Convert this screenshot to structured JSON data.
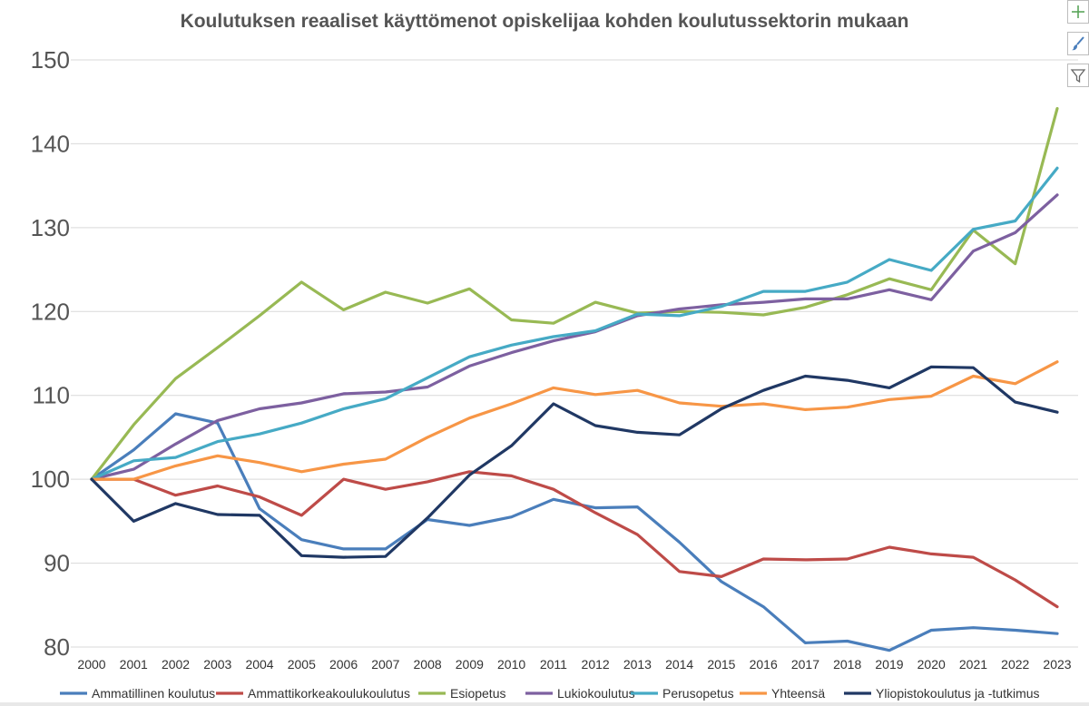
{
  "chart_data": {
    "type": "line",
    "title": "Koulutuksen reaaliset käyttömenot opiskelijaa kohden koulutussektorin mukaan",
    "xlabel": "",
    "ylabel": "",
    "ylim": [
      80,
      150
    ],
    "yticks": [
      80,
      90,
      100,
      110,
      120,
      130,
      140,
      150
    ],
    "grid": true,
    "legend_position": "bottom",
    "categories": [
      "2000",
      "2001",
      "2002",
      "2003",
      "2004",
      "2005",
      "2006",
      "2007",
      "2008",
      "2009",
      "2010",
      "2011",
      "2012",
      "2013",
      "2014",
      "2015",
      "2016",
      "2017",
      "2018",
      "2019",
      "2020",
      "2021",
      "2022",
      "2023"
    ],
    "series": [
      {
        "name": "Ammatillinen koulutus",
        "color": "#4a7ebb",
        "values": [
          100.0,
          103.5,
          107.8,
          106.7,
          96.5,
          92.8,
          91.7,
          91.7,
          95.2,
          94.5,
          95.5,
          97.6,
          96.6,
          96.7,
          92.5,
          87.8,
          84.8,
          80.5,
          80.7,
          79.6,
          82.0,
          82.3,
          82.0,
          81.6
        ]
      },
      {
        "name": "Ammattikorkeakoulukoulutus",
        "color": "#be4b48",
        "values": [
          100.0,
          100.0,
          98.1,
          99.2,
          97.9,
          95.7,
          100.0,
          98.8,
          99.7,
          100.9,
          100.4,
          98.8,
          96.0,
          93.4,
          89.0,
          88.4,
          90.5,
          90.4,
          90.5,
          91.9,
          91.1,
          90.7,
          88.0,
          84.8
        ]
      },
      {
        "name": "Esiopetus",
        "color": "#98b954",
        "values": [
          100.0,
          106.5,
          112.0,
          115.7,
          119.5,
          123.5,
          120.2,
          122.3,
          121.0,
          122.7,
          119.0,
          118.6,
          121.1,
          119.8,
          120.0,
          119.9,
          119.6,
          120.5,
          122.0,
          123.9,
          122.6,
          129.7,
          125.7,
          144.2
        ]
      },
      {
        "name": "Lukiokoulutus",
        "color": "#7d60a0",
        "values": [
          100.0,
          101.2,
          104.2,
          107.0,
          108.4,
          109.1,
          110.2,
          110.4,
          111.0,
          113.5,
          115.1,
          116.5,
          117.6,
          119.5,
          120.3,
          120.8,
          121.1,
          121.5,
          121.5,
          122.6,
          121.4,
          127.2,
          129.4,
          133.9
        ]
      },
      {
        "name": "Perusopetus",
        "color": "#46aac5",
        "values": [
          100.0,
          102.2,
          102.6,
          104.5,
          105.4,
          106.7,
          108.4,
          109.6,
          112.1,
          114.6,
          116.0,
          117.0,
          117.7,
          119.7,
          119.5,
          120.6,
          122.4,
          122.4,
          123.5,
          126.2,
          124.9,
          129.8,
          130.8,
          137.1
        ]
      },
      {
        "name": "Yhteensä",
        "color": "#f79646",
        "values": [
          100.0,
          100.0,
          101.6,
          102.8,
          102.0,
          100.9,
          101.8,
          102.4,
          105.0,
          107.3,
          109.0,
          110.9,
          110.1,
          110.6,
          109.1,
          108.7,
          109.0,
          108.3,
          108.6,
          109.5,
          109.9,
          112.3,
          111.4,
          114.0
        ]
      },
      {
        "name": "Yliopistokoulutus ja -tutkimus",
        "color": "#203864",
        "values": [
          100.0,
          95.0,
          97.1,
          95.8,
          95.7,
          90.9,
          90.7,
          90.8,
          95.4,
          100.5,
          104.0,
          109.0,
          106.4,
          105.6,
          105.3,
          108.4,
          110.6,
          112.3,
          111.8,
          110.9,
          113.4,
          113.3,
          109.2,
          108.0
        ]
      }
    ]
  },
  "toolbar": {
    "buttons": [
      {
        "name": "chart-elements-button",
        "icon": "plus-icon"
      },
      {
        "name": "chart-styles-button",
        "icon": "brush-icon"
      },
      {
        "name": "chart-filters-button",
        "icon": "funnel-icon"
      }
    ]
  }
}
